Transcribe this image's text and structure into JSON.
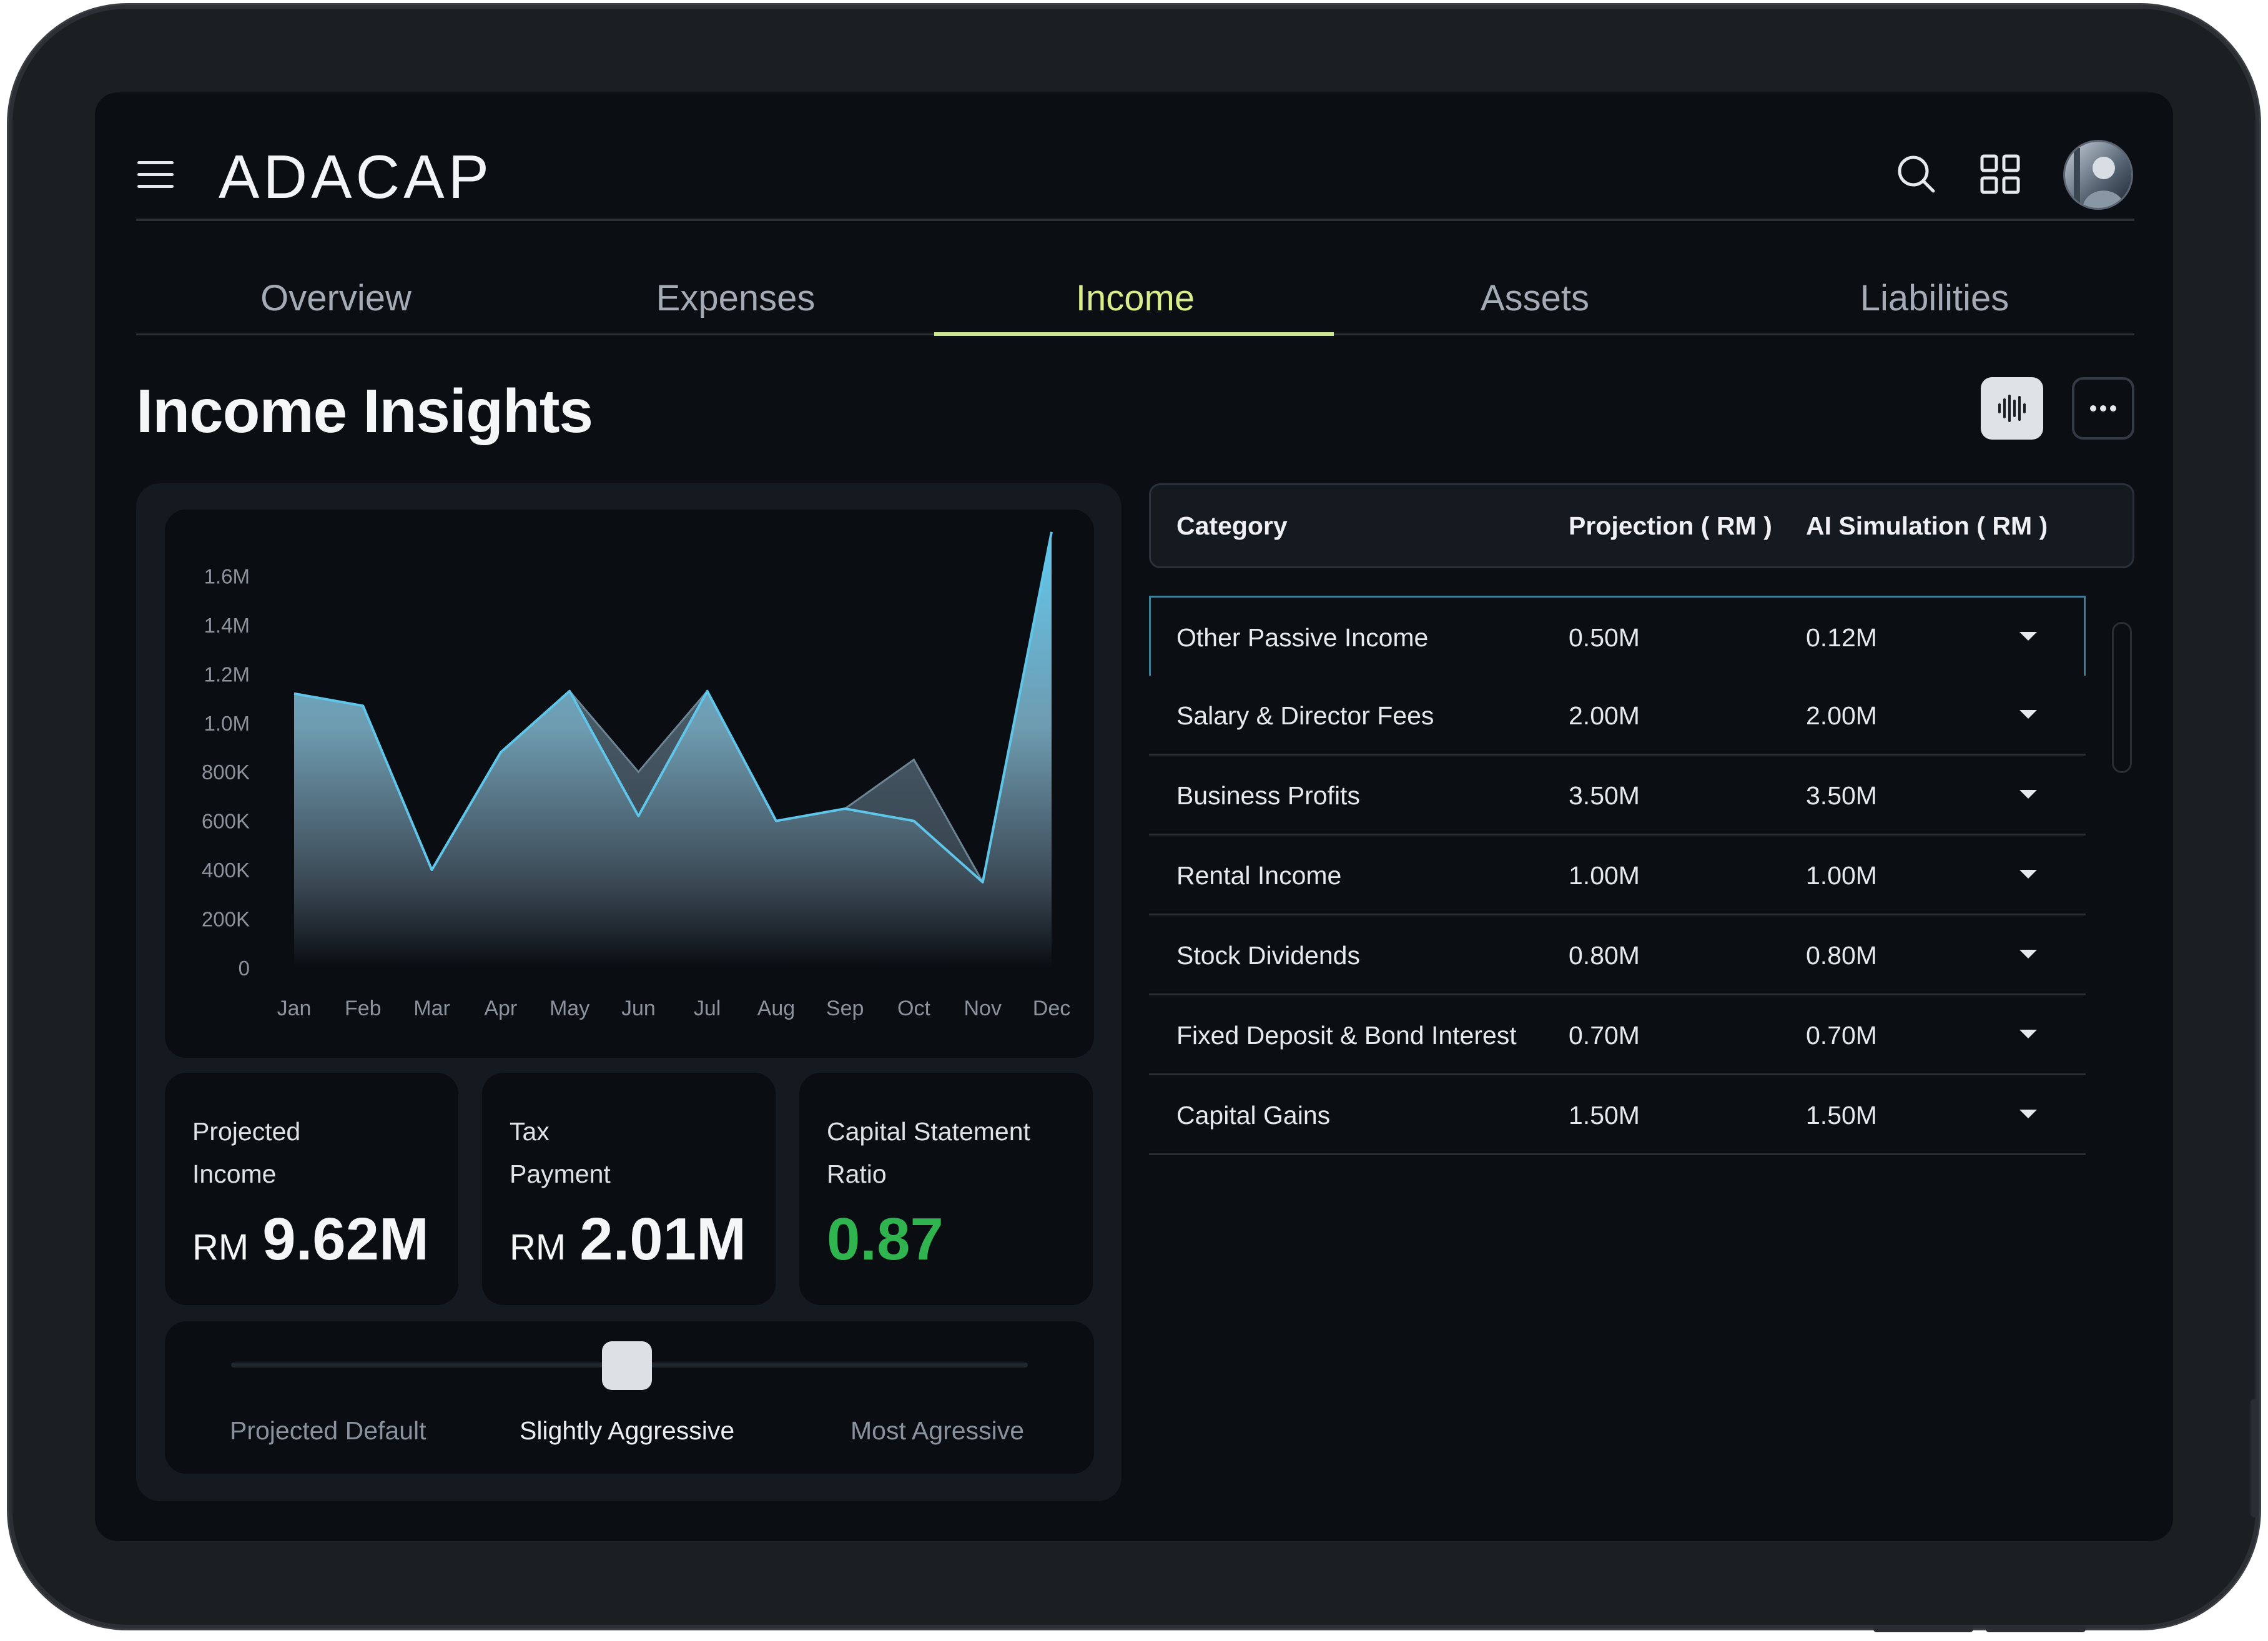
{
  "app": {
    "logo": "ADACAP"
  },
  "tabs": [
    {
      "label": "Overview"
    },
    {
      "label": "Expenses"
    },
    {
      "label": "Income",
      "active": true
    },
    {
      "label": "Assets"
    },
    {
      "label": "Liabilities"
    }
  ],
  "page": {
    "title": "Income Insights"
  },
  "icons": {
    "menu": "hamburger-icon",
    "search": "search-icon",
    "grid": "grid-icon",
    "voice": "waveform-icon",
    "more": "more-horizontal-icon"
  },
  "colors": {
    "accent": "#d9ee8b",
    "positive": "#2fb44f",
    "series_line": "#5fc6ea"
  },
  "chart_data": {
    "type": "area",
    "categories": [
      "Jan",
      "Feb",
      "Mar",
      "Apr",
      "May",
      "Jun",
      "Jul",
      "Aug",
      "Sep",
      "Oct",
      "Nov",
      "Dec"
    ],
    "series": [
      {
        "values": [
          1120000,
          1070000,
          400000,
          880000,
          1130000,
          620000,
          1130000,
          600000,
          650000,
          600000,
          350000,
          1780000
        ]
      },
      {
        "values": [
          1120000,
          1070000,
          400000,
          880000,
          1130000,
          800000,
          1130000,
          600000,
          650000,
          850000,
          350000,
          1780000
        ]
      }
    ],
    "y_ticks": [
      "1.6M",
      "1.4M",
      "1.2M",
      "1.0M",
      "800K",
      "600K",
      "400K",
      "200K",
      "0"
    ],
    "ylim": [
      0,
      1800000
    ],
    "grid": false
  },
  "kpis": [
    {
      "label": "Projected\nIncome",
      "currency": "RM",
      "value": "9.62M"
    },
    {
      "label": "Tax\nPayment",
      "currency": "RM",
      "value": "2.01M"
    },
    {
      "label": "Capital Statement\nRatio",
      "currency": "",
      "value": "0.87"
    }
  ],
  "slider": {
    "options": [
      "Projected Default",
      "Slightly Aggressive",
      "Most Agressive"
    ],
    "selected": "Slightly Aggressive"
  },
  "table": {
    "headers": [
      "Category",
      "Projection ( RM )",
      "AI Simulation ( RM )"
    ],
    "rows": [
      {
        "category": "Other Passive Income",
        "projection": "0.50M",
        "ai": "0.12M"
      },
      {
        "category": "Salary & Director Fees",
        "projection": "2.00M",
        "ai": "2.00M"
      },
      {
        "category": "Business Profits",
        "projection": "3.50M",
        "ai": "3.50M"
      },
      {
        "category": "Rental Income",
        "projection": "1.00M",
        "ai": "1.00M"
      },
      {
        "category": "Stock Dividends",
        "projection": "0.80M",
        "ai": "0.80M"
      },
      {
        "category": "Fixed Deposit & Bond Interest",
        "projection": "0.70M",
        "ai": "0.70M"
      },
      {
        "category": "Capital Gains",
        "projection": "1.50M",
        "ai": "1.50M"
      }
    ]
  }
}
